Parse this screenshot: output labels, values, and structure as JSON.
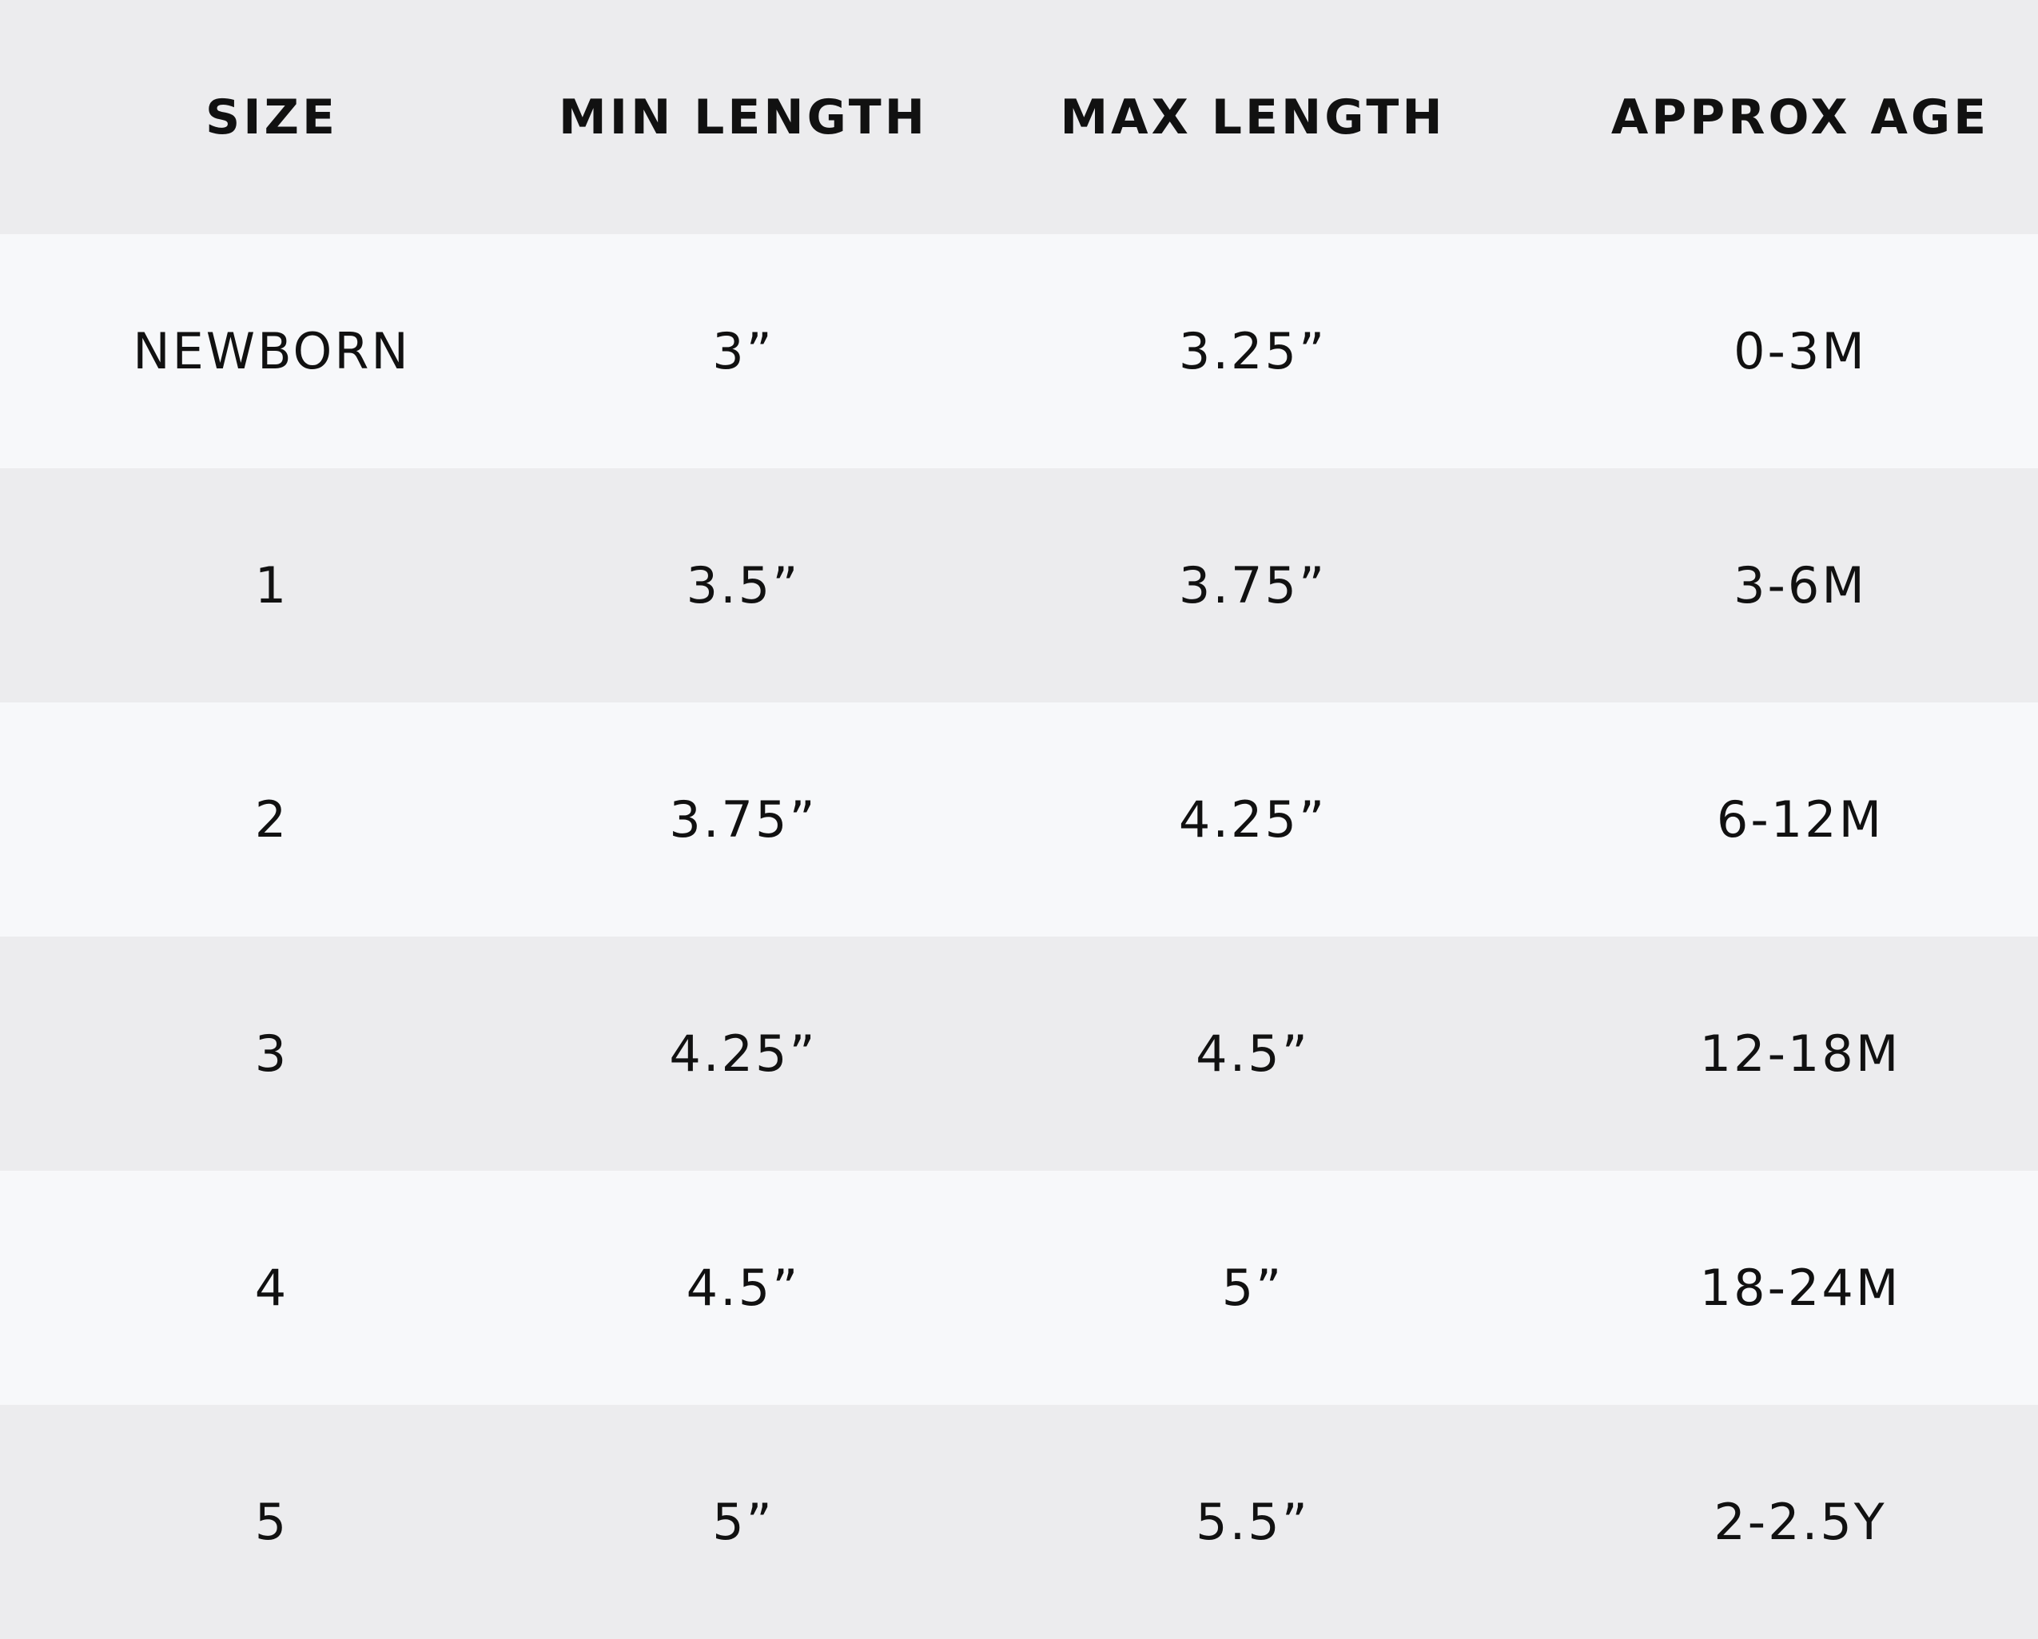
{
  "table": {
    "header": [
      "SIZE",
      "MIN LENGTH",
      "MAX LENGTH",
      "APPROX AGE"
    ],
    "rows": [
      [
        "NEWBORN",
        "3”",
        "3.25”",
        "0-3M"
      ],
      [
        "1",
        "3.5”",
        "3.75”",
        "3-6M"
      ],
      [
        "2",
        "3.75”",
        "4.25”",
        "6-12M"
      ],
      [
        "3",
        "4.25”",
        "4.5”",
        "12-18M"
      ],
      [
        "4",
        "4.5”",
        "5”",
        "18-24M"
      ],
      [
        "5",
        "5”",
        "5.5”",
        "2-2.5Y"
      ]
    ]
  }
}
